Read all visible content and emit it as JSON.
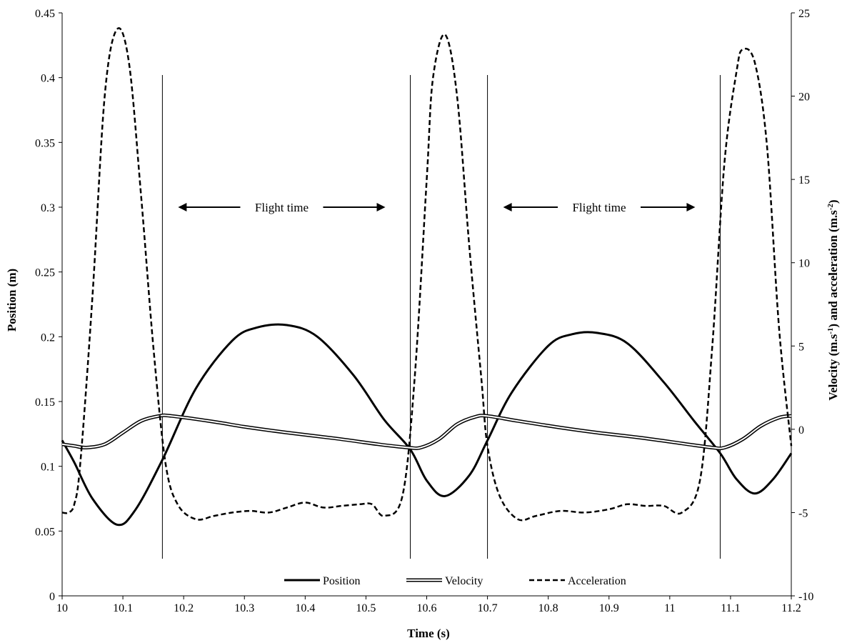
{
  "chart_data": {
    "type": "line",
    "xlabel": "Time (s)",
    "ylabel_left": "Position (m)",
    "ylabel_right_parts": [
      "Velocity (m.s",
      "-1",
      ") and acceleration (m.s",
      "-2",
      ")"
    ],
    "xlim": [
      10,
      11.2
    ],
    "ylim_left": [
      0,
      0.45
    ],
    "ylim_right": [
      -10,
      25
    ],
    "x_ticks": [
      "10",
      "10.1",
      "10.2",
      "10.3",
      "10.4",
      "10.5",
      "10.6",
      "10.7",
      "10.8",
      "10.9",
      "11",
      "11.1",
      "11.2"
    ],
    "y_left_ticks": [
      "0",
      "0.05",
      "0.1",
      "0.15",
      "0.2",
      "0.25",
      "0.3",
      "0.35",
      "0.4",
      "0.45"
    ],
    "y_right_ticks": [
      "-10",
      "-5",
      "0",
      "5",
      "10",
      "15",
      "20",
      "25"
    ],
    "grid": false,
    "legend_position": "bottom",
    "series": [
      {
        "name": "Position",
        "axis": "left",
        "style": "solid",
        "x": [
          10.0,
          10.02,
          10.05,
          10.09,
          10.12,
          10.165,
          10.22,
          10.28,
          10.32,
          10.37,
          10.42,
          10.48,
          10.53,
          10.573,
          10.6,
          10.63,
          10.67,
          10.7,
          10.74,
          10.8,
          10.84,
          10.88,
          10.93,
          10.99,
          11.04,
          11.083,
          11.11,
          11.14,
          11.17,
          11.2
        ],
        "y": [
          0.12,
          0.103,
          0.075,
          0.055,
          0.066,
          0.105,
          0.16,
          0.197,
          0.207,
          0.209,
          0.2,
          0.17,
          0.136,
          0.113,
          0.089,
          0.077,
          0.093,
          0.12,
          0.157,
          0.193,
          0.202,
          0.203,
          0.195,
          0.165,
          0.135,
          0.11,
          0.09,
          0.079,
          0.09,
          0.11
        ]
      },
      {
        "name": "Velocity",
        "axis": "right",
        "style": "double",
        "x": [
          10.0,
          10.02,
          10.04,
          10.07,
          10.1,
          10.13,
          10.16,
          10.18,
          10.25,
          10.3,
          10.37,
          10.45,
          10.52,
          10.57,
          10.59,
          10.62,
          10.65,
          10.68,
          10.7,
          10.75,
          10.82,
          10.88,
          10.95,
          11.02,
          11.07,
          11.09,
          11.12,
          11.15,
          11.18,
          11.2
        ],
        "y": [
          -0.9,
          -1.0,
          -1.1,
          -0.9,
          -0.2,
          0.5,
          0.8,
          0.8,
          0.45,
          0.15,
          -0.2,
          -0.55,
          -0.9,
          -1.1,
          -1.1,
          -0.6,
          0.3,
          0.75,
          0.8,
          0.5,
          0.1,
          -0.2,
          -0.5,
          -0.85,
          -1.1,
          -1.1,
          -0.6,
          0.2,
          0.7,
          0.8
        ]
      },
      {
        "name": "Acceleration",
        "axis": "right",
        "style": "dashed",
        "x": [
          10.0,
          10.01,
          10.02,
          10.03,
          10.05,
          10.07,
          10.09,
          10.11,
          10.13,
          10.15,
          10.17,
          10.19,
          10.22,
          10.25,
          10.28,
          10.31,
          10.34,
          10.37,
          10.4,
          10.43,
          10.46,
          10.49,
          10.51,
          10.53,
          10.56,
          10.58,
          10.6,
          10.61,
          10.63,
          10.65,
          10.67,
          10.69,
          10.7,
          10.72,
          10.75,
          10.78,
          10.82,
          10.86,
          10.9,
          10.93,
          10.96,
          10.99,
          11.02,
          11.05,
          11.07,
          11.09,
          11.11,
          11.12,
          11.14,
          11.16,
          11.18,
          11.2
        ],
        "y": [
          -5.0,
          -5.0,
          -4.5,
          -2.0,
          8.0,
          20.0,
          24.0,
          22.0,
          14.0,
          5.0,
          -2.0,
          -4.5,
          -5.4,
          -5.2,
          -5.0,
          -4.9,
          -5.0,
          -4.7,
          -4.4,
          -4.7,
          -4.6,
          -4.5,
          -4.5,
          -5.2,
          -4.0,
          3.0,
          15.0,
          21.0,
          23.7,
          20.0,
          11.0,
          3.0,
          -1.0,
          -4.0,
          -5.4,
          -5.2,
          -4.9,
          -5.0,
          -4.8,
          -4.5,
          -4.6,
          -4.6,
          -5.0,
          -3.0,
          5.0,
          16.0,
          21.5,
          22.8,
          22.0,
          17.0,
          6.0,
          -1.0
        ]
      }
    ],
    "vertical_lines": [
      10.165,
      10.573,
      10.7,
      11.083
    ],
    "annotations": [
      {
        "text": "Flight time",
        "x_from": 10.165,
        "x_to": 10.573,
        "y": 0.3
      },
      {
        "text": "Flight time",
        "x_from": 10.7,
        "x_to": 11.083,
        "y": 0.3
      }
    ]
  }
}
